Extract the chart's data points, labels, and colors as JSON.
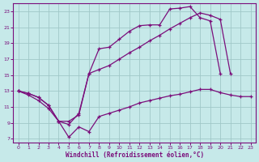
{
  "xlabel": "Windchill (Refroidissement éolien,°C)",
  "background_color": "#c6e9e9",
  "grid_color": "#a0c8c8",
  "line_color": "#7b0e7b",
  "xlim_min": -0.5,
  "xlim_max": 23.5,
  "ylim_min": 6.5,
  "ylim_max": 24.0,
  "xticks": [
    0,
    1,
    2,
    3,
    4,
    5,
    6,
    7,
    8,
    9,
    10,
    11,
    12,
    13,
    14,
    15,
    16,
    17,
    18,
    19,
    20,
    21,
    22,
    23
  ],
  "yticks": [
    7,
    9,
    11,
    13,
    15,
    17,
    19,
    21,
    23
  ],
  "line1_x": [
    0,
    1,
    2,
    3,
    4,
    5,
    6,
    7,
    8,
    9,
    10,
    11,
    12,
    13,
    14,
    15,
    16,
    17,
    18,
    19,
    20
  ],
  "line1_y": [
    13,
    12.7,
    12.2,
    11.2,
    9.2,
    8.8,
    10.2,
    15.2,
    18.3,
    18.5,
    19.5,
    20.5,
    21.2,
    21.3,
    21.3,
    23.3,
    23.4,
    23.6,
    22.2,
    21.8,
    15.2
  ],
  "line2_x": [
    0,
    1,
    2,
    3,
    4,
    5,
    6,
    7,
    8,
    9,
    10,
    11,
    12,
    13,
    14,
    15,
    16,
    17,
    18,
    19,
    20,
    21,
    22,
    23
  ],
  "line2_y": [
    13,
    12.7,
    12.2,
    11.2,
    9.2,
    7.2,
    8.5,
    7.9,
    9.8,
    10.2,
    10.6,
    11.0,
    11.5,
    11.8,
    12.1,
    12.4,
    12.6,
    12.9,
    13.2,
    13.2,
    12.8,
    12.5,
    12.3,
    12.3
  ],
  "line3_x": [
    0,
    1,
    2,
    3,
    4,
    5,
    6,
    7,
    8,
    9,
    10,
    11,
    12,
    13,
    14,
    15,
    16,
    17,
    18,
    19,
    20,
    21
  ],
  "line3_y": [
    13,
    12.5,
    11.8,
    10.8,
    9.2,
    9.2,
    10.0,
    15.2,
    15.7,
    16.2,
    17.0,
    17.8,
    18.5,
    19.3,
    20.0,
    20.8,
    21.5,
    22.2,
    22.8,
    22.5,
    22.0,
    15.2
  ],
  "xlabel_fontsize": 5.5,
  "tick_fontsize": 4.5,
  "linewidth": 0.9,
  "markersize": 3.0
}
